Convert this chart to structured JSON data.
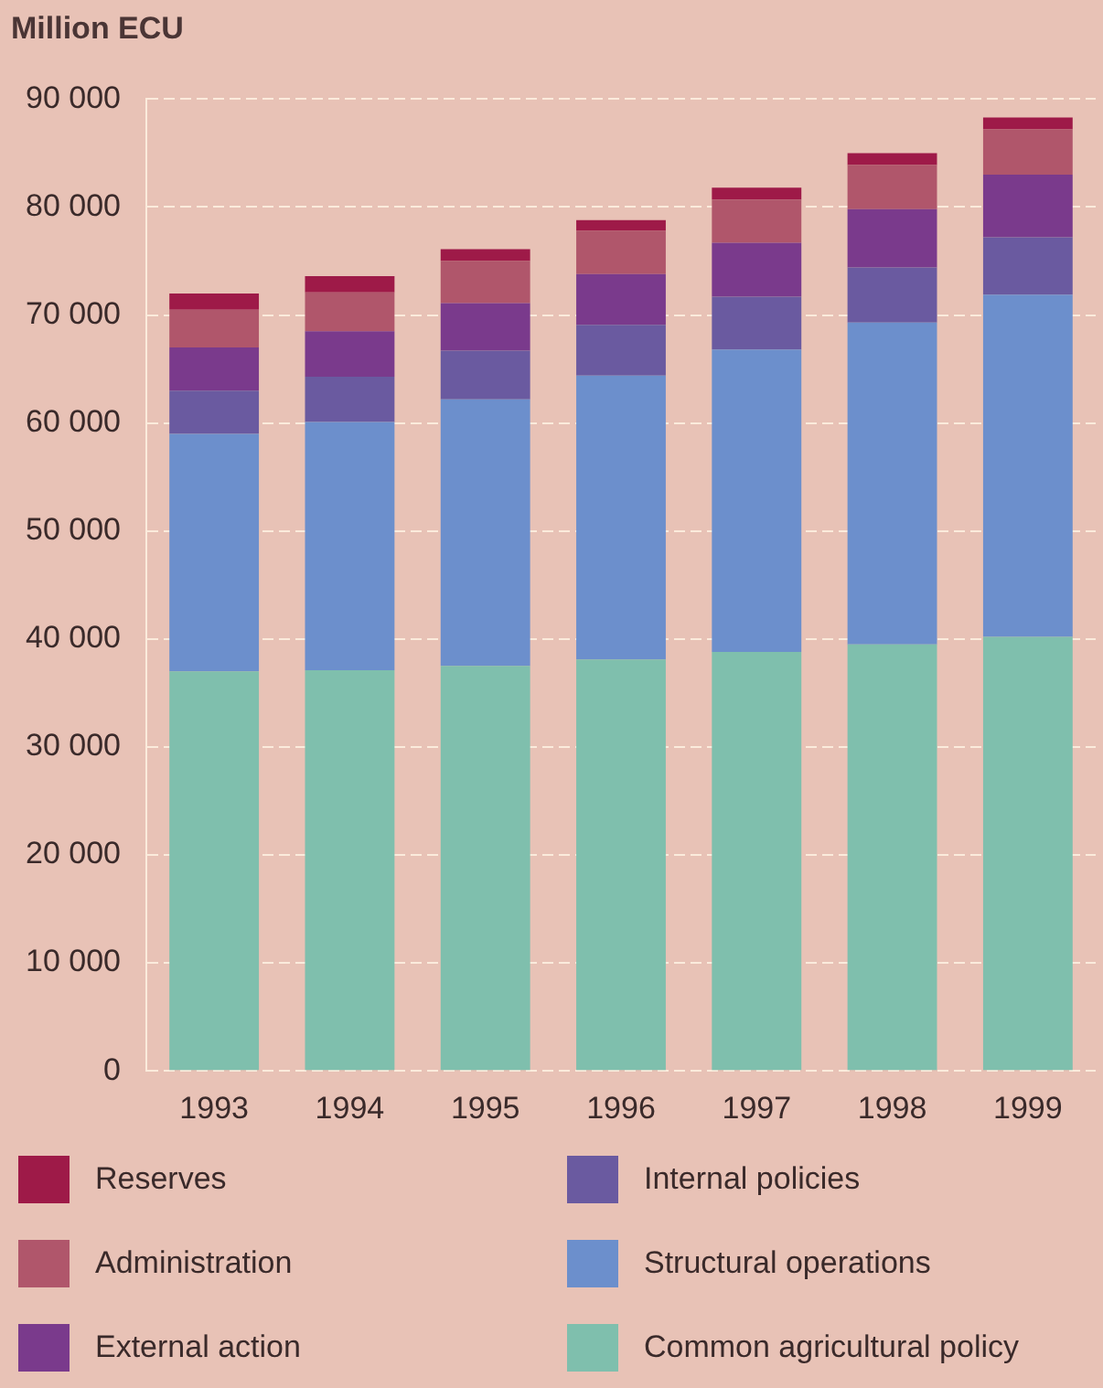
{
  "chart_data": {
    "type": "bar",
    "stacked": true,
    "ylabel": "Million ECU",
    "categories": [
      "1993",
      "1994",
      "1995",
      "1996",
      "1997",
      "1998",
      "1999"
    ],
    "series": [
      {
        "name": "Common agricultural policy",
        "color": "#7fbfad",
        "values": [
          37000,
          37100,
          37500,
          38100,
          38800,
          39500,
          40200
        ]
      },
      {
        "name": "Structural operations",
        "color": "#6c8fcc",
        "values": [
          22000,
          23000,
          24700,
          26300,
          28000,
          29800,
          31700
        ]
      },
      {
        "name": "Internal policies",
        "color": "#6a5aa0",
        "values": [
          4000,
          4200,
          4500,
          4700,
          4900,
          5100,
          5300
        ]
      },
      {
        "name": "External action",
        "color": "#7a3a8c",
        "values": [
          4000,
          4200,
          4400,
          4700,
          5000,
          5400,
          5800
        ]
      },
      {
        "name": "Administration",
        "color": "#b0566b",
        "values": [
          3500,
          3600,
          3900,
          4000,
          4000,
          4100,
          4200
        ]
      },
      {
        "name": "Reserves",
        "color": "#9e1a48",
        "values": [
          1500,
          1500,
          1100,
          1000,
          1100,
          1100,
          1100
        ]
      }
    ],
    "ylim": [
      0,
      90000
    ],
    "yticks": [
      {
        "value": 0,
        "label": "0"
      },
      {
        "value": 10000,
        "label": "10 000"
      },
      {
        "value": 20000,
        "label": "20 000"
      },
      {
        "value": 30000,
        "label": "30 000"
      },
      {
        "value": 40000,
        "label": "40 000"
      },
      {
        "value": 50000,
        "label": "50 000"
      },
      {
        "value": 60000,
        "label": "60 000"
      },
      {
        "value": 70000,
        "label": "70 000"
      },
      {
        "value": 80000,
        "label": "80 000"
      },
      {
        "value": 90000,
        "label": "90 000"
      }
    ],
    "grid": "y",
    "legend": "bottom"
  }
}
